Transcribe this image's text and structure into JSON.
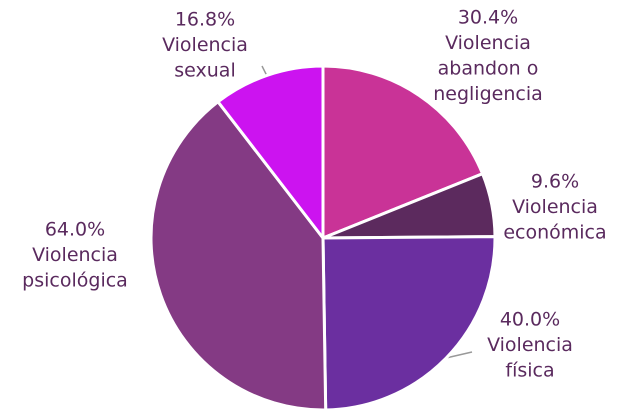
{
  "chart_data": {
    "type": "pie",
    "categories": [
      [
        "Violencia",
        "abandon o",
        "negligencia"
      ],
      [
        "Violencia",
        "económica"
      ],
      [
        "Violencia",
        "física"
      ],
      [
        "Violencia",
        "psicológica"
      ],
      [
        "Violencia",
        "sexual"
      ]
    ],
    "values": [
      30.4,
      9.6,
      40.0,
      64.0,
      16.8
    ],
    "value_labels": [
      "30.4%",
      "9.6%",
      "40.0%",
      "64.0%",
      "16.8%"
    ],
    "colors": [
      "#c93397",
      "#5c2a5e",
      "#6b2fa0",
      "#843a84",
      "#cc13f0"
    ]
  }
}
